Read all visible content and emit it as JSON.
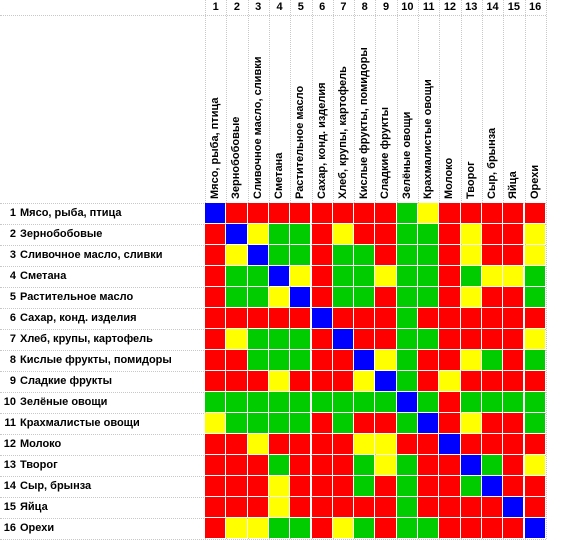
{
  "column_numbers": [
    "1",
    "2",
    "3",
    "4",
    "5",
    "6",
    "7",
    "8",
    "9",
    "10",
    "11",
    "12",
    "13",
    "14",
    "15",
    "16"
  ],
  "row_numbers": [
    "1",
    "2",
    "3",
    "4",
    "5",
    "6",
    "7",
    "8",
    "9",
    "10",
    "11",
    "12",
    "13",
    "14",
    "15",
    "16"
  ],
  "foods": [
    "Мясо, рыба, птица",
    "Зернобобовые",
    "Сливочное масло, сливки",
    "Сметана",
    "Растительное масло",
    "Сахар, конд. изделия",
    "Хлеб, крупы, картофель",
    "Кислые фрукты, помидоры",
    "Сладкие фрукты",
    "Зелёные овощи",
    "Крахмалистые овощи",
    "Молоко",
    "Творог",
    "Сыр, брынза",
    "Яйца",
    "Орехи"
  ],
  "palette": {
    "R": "#ff0000",
    "G": "#00cc00",
    "Y": "#ffff00",
    "B": "#0000ff"
  },
  "matrix": [
    "BRRRRRRRRGYRRRRR",
    "RBYGGRYRRGGRYRRY",
    "RYBGGRGGRGGRYRRY",
    "RGGBYRGGYGGRGYYG",
    "RGGYBRGGRGGRYRRG",
    "RRRRRBRRRGRRRRRR",
    "RYGGGRBRRGGRRRRY",
    "RRGGGRRBYGRRYGRG",
    "RRRYRRRYBGRYRRRR",
    "GGGGGGGGGBGRGGGG",
    "YGGGGRGRRGBRYRRG",
    "RRYRRRRYYRRBRRRR",
    "RRRGRRRGYGRRBGRY",
    "RRRYRRRGRGRRGBRR",
    "RRRYRRRRRGRRRRBR",
    "RYYGGRYGRGGRRRRB"
  ]
}
